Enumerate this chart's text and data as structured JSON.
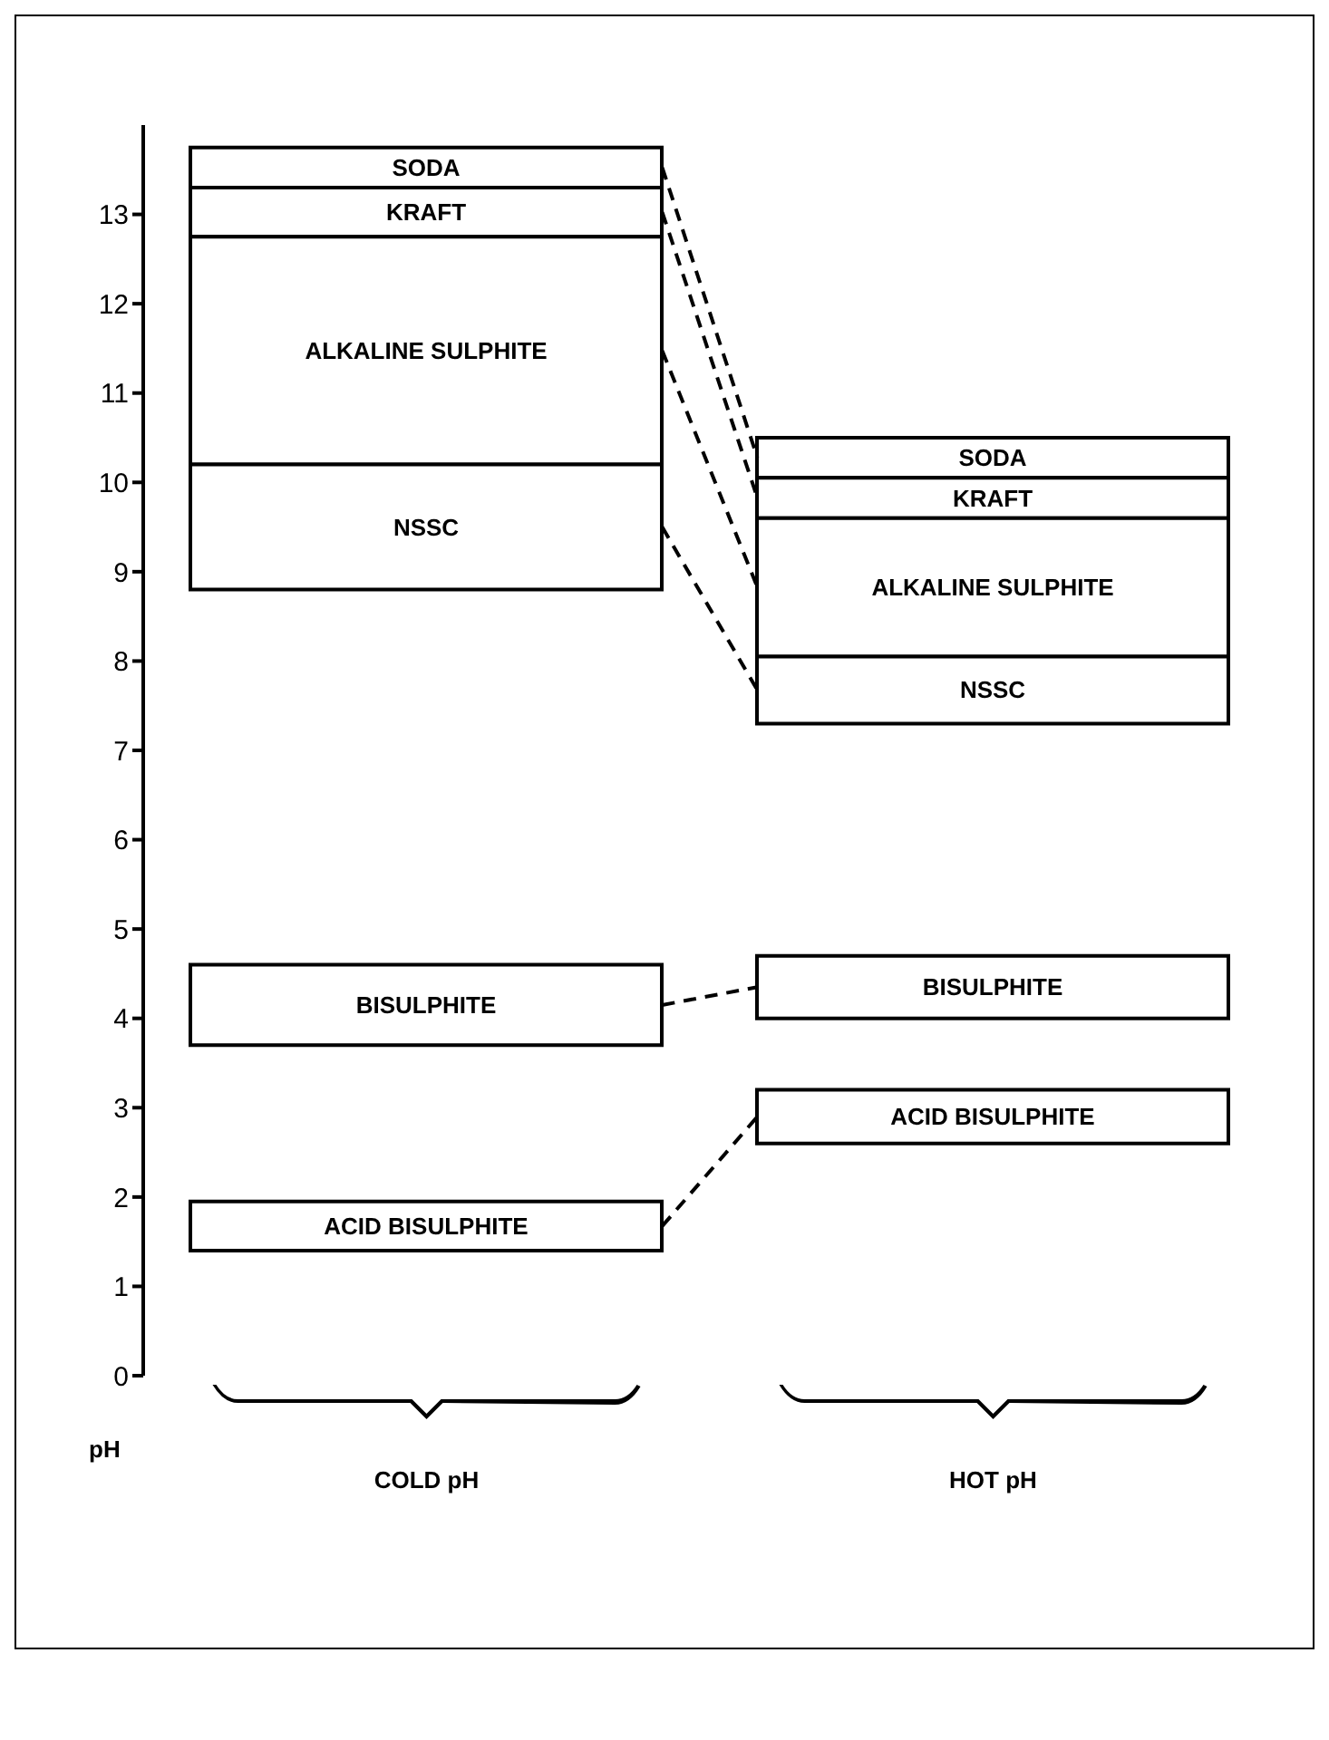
{
  "chart_data": {
    "type": "bar",
    "categories": [
      "COLD pH",
      "HOT pH"
    ],
    "ylabel": "pH",
    "ylim": [
      0,
      14
    ],
    "yticks": [
      0,
      1,
      2,
      3,
      4,
      5,
      6,
      7,
      8,
      9,
      10,
      11,
      12,
      13
    ],
    "grid": false,
    "legend": false,
    "series": [
      {
        "name": "SODA",
        "color": "#ffffff",
        "base": [
          13.3,
          10.05
        ],
        "values": [
          0.45,
          0.45
        ]
      },
      {
        "name": "KRAFT",
        "color": "#ffffff",
        "base": [
          12.75,
          9.6
        ],
        "values": [
          0.55,
          0.45
        ]
      },
      {
        "name": "ALKALINE SULPHITE",
        "color": "#ffffff",
        "base": [
          10.2,
          8.05
        ],
        "values": [
          2.55,
          1.55
        ]
      },
      {
        "name": "NSSC",
        "color": "#ffffff",
        "base": [
          8.8,
          7.3
        ],
        "values": [
          1.4,
          0.75
        ]
      },
      {
        "name": "BISULPHITE",
        "color": "#ffffff",
        "base": [
          3.7,
          4.0
        ],
        "values": [
          0.9,
          0.7
        ]
      },
      {
        "name": "ACID BISULPHITE",
        "color": "#ffffff",
        "base": [
          1.4,
          2.6
        ],
        "values": [
          0.55,
          0.6
        ]
      }
    ]
  }
}
